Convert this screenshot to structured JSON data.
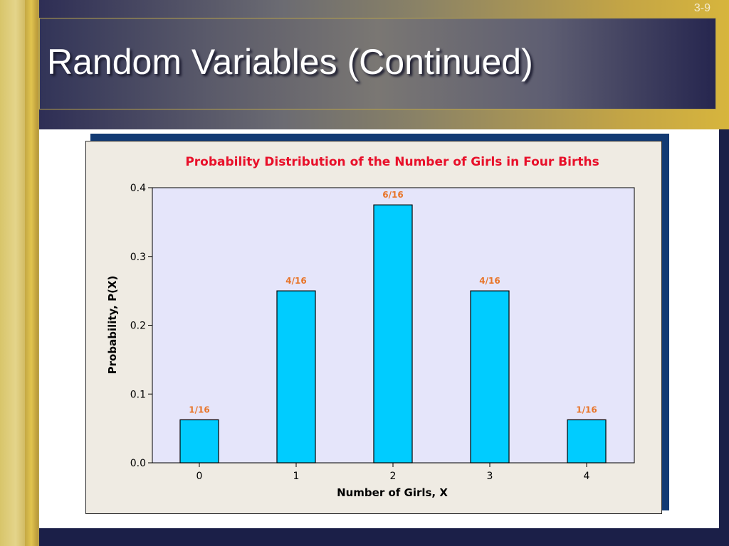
{
  "slide": {
    "title": "Random Variables (Continued)",
    "number": "3-9"
  },
  "colors": {
    "title_text": "#ffffff",
    "chart_title": "#e8102a",
    "bar_fill": "#00ccff",
    "bar_label": "#e8752a",
    "plot_bg": "#e5e5fa",
    "frame_bg": "#efebe3"
  },
  "chart_data": {
    "type": "bar",
    "title": "Probability Distribution of the Number of Girls in Four Births",
    "xlabel": "Number of Girls, X",
    "ylabel": "Probability, P(X)",
    "categories": [
      "0",
      "1",
      "2",
      "3",
      "4"
    ],
    "values": [
      0.0625,
      0.25,
      0.375,
      0.25,
      0.0625
    ],
    "data_labels": [
      "1/16",
      "4/16",
      "6/16",
      "4/16",
      "1/16"
    ],
    "yticks": [
      "0.0",
      "0.1",
      "0.2",
      "0.3",
      "0.4"
    ],
    "ytick_values": [
      0,
      0.1,
      0.2,
      0.3,
      0.4
    ],
    "ylim": [
      0,
      0.4
    ],
    "grid": false,
    "legend": "none"
  }
}
